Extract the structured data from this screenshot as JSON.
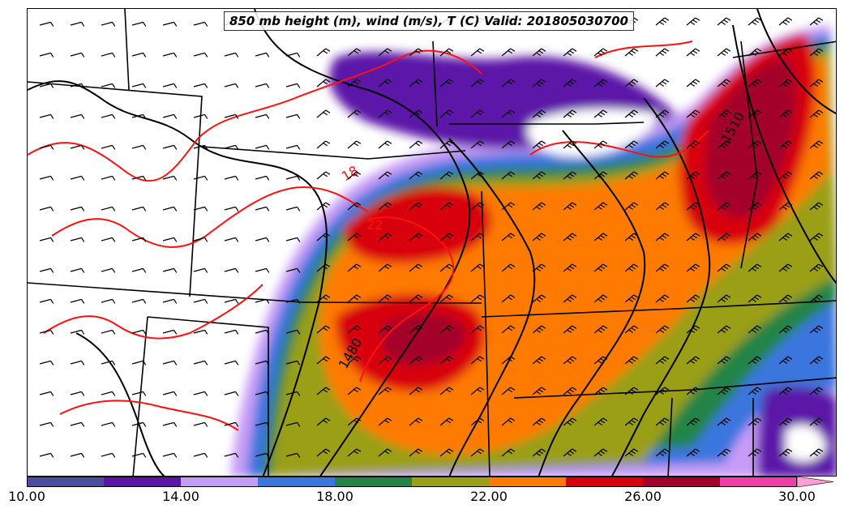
{
  "map": {
    "title": "850 mb height (m), wind (m/s), T (C) Valid: 201805030700",
    "contour_labels": {
      "height_1510": "1510",
      "height_1480": "1480",
      "temp_22": "22",
      "temp_18": "18"
    }
  },
  "colorbar": {
    "tick_labels": [
      "10.00",
      "14.00",
      "18.00",
      "22.00",
      "26.00",
      "30.00"
    ],
    "bins": [
      {
        "min": 10,
        "max": 12,
        "color": "#4b4e9e"
      },
      {
        "min": 12,
        "max": 14,
        "color": "#5b16a8"
      },
      {
        "min": 14,
        "max": 16,
        "color": "#c79cf7"
      },
      {
        "min": 16,
        "max": 18,
        "color": "#3b76de"
      },
      {
        "min": 18,
        "max": 20,
        "color": "#238446"
      },
      {
        "min": 20,
        "max": 22,
        "color": "#9a9f16"
      },
      {
        "min": 22,
        "max": 24,
        "color": "#ff7a00"
      },
      {
        "min": 24,
        "max": 26,
        "color": "#d8000a"
      },
      {
        "min": 26,
        "max": 28,
        "color": "#a30029"
      },
      {
        "min": 28,
        "max": 30,
        "color": "#f03fa8"
      },
      {
        "min": 30,
        "max": 32,
        "color": "#ff9fd6"
      }
    ],
    "range": [
      10,
      31
    ]
  },
  "colors": {
    "height_contour": "#000000",
    "temperature_contour": "#ff1010",
    "state_borders": "#000000"
  }
}
